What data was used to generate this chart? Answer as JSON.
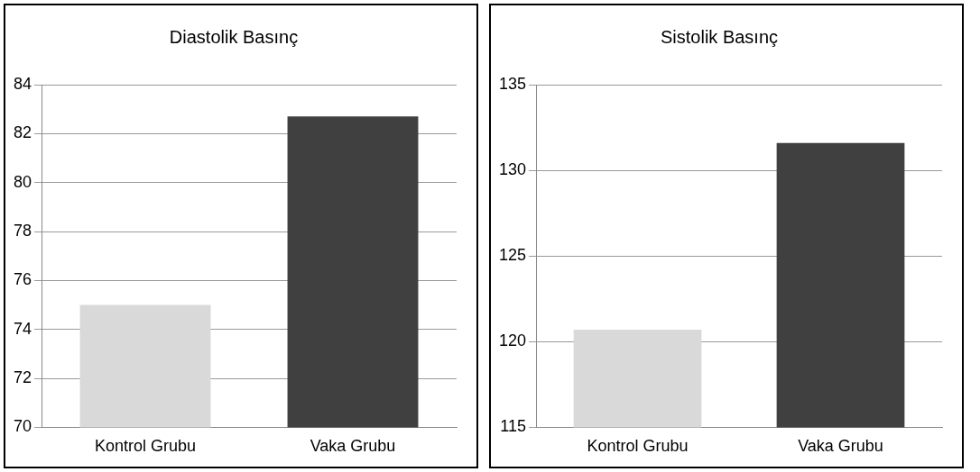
{
  "chart_data": [
    {
      "type": "bar",
      "title": "Diastolik Basınç",
      "categories": [
        "Kontrol Grubu",
        "Vaka Grubu"
      ],
      "values": [
        75,
        82.7
      ],
      "colors": [
        "#d9d9d9",
        "#404040"
      ],
      "ylim": [
        70,
        84
      ],
      "yticks": [
        70,
        72,
        74,
        76,
        78,
        80,
        82,
        84
      ],
      "grid": "y"
    },
    {
      "type": "bar",
      "title": "Sistolik Basınç",
      "categories": [
        "Kontrol Grubu",
        "Vaka Grubu"
      ],
      "values": [
        120.7,
        131.6
      ],
      "colors": [
        "#d9d9d9",
        "#404040"
      ],
      "ylim": [
        115,
        135
      ],
      "yticks": [
        115,
        120,
        125,
        130,
        135
      ],
      "grid": "y"
    }
  ]
}
